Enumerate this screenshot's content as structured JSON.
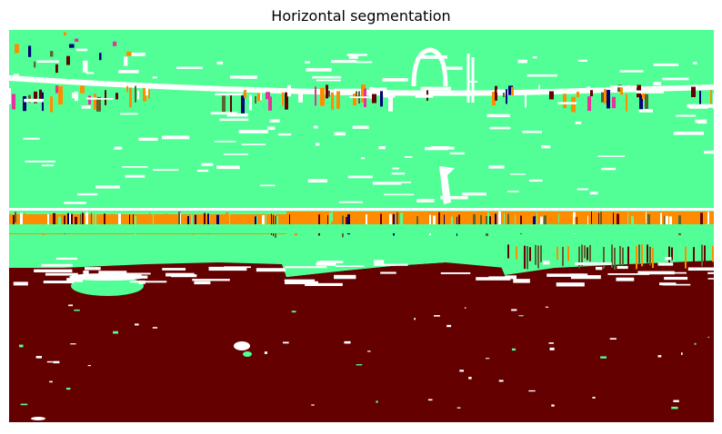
{
  "figure": {
    "title": "Horizontal segmentation"
  },
  "palette": {
    "green": "#52ff96",
    "maroon": "#640000",
    "orange": "#ff8c00",
    "olive": "#5a6432",
    "navy": "#000078",
    "magenta": "#e6329b",
    "white": "#ffffff"
  }
}
